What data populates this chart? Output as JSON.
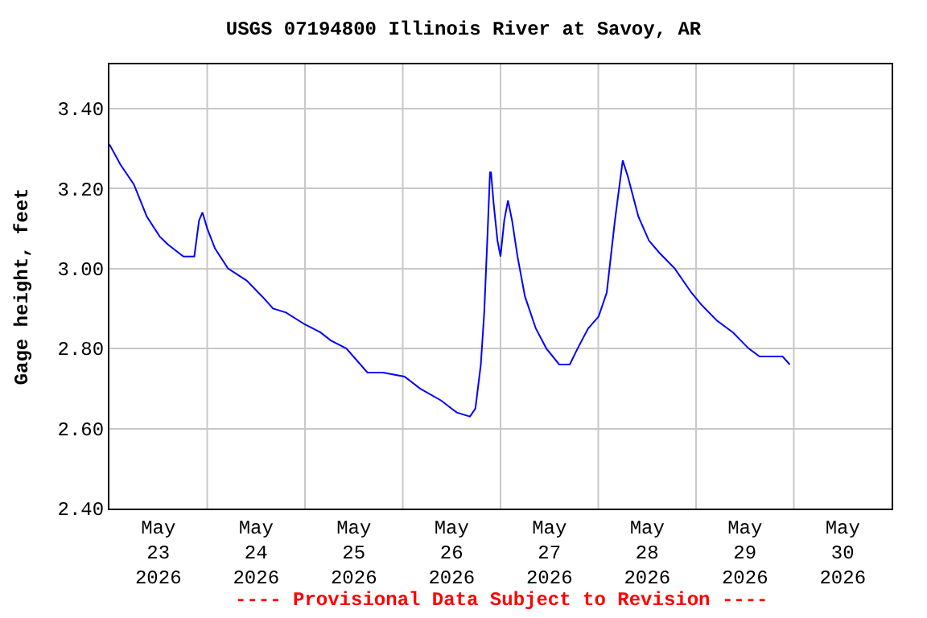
{
  "chart_data": {
    "type": "line",
    "title": "USGS 07194800 Illinois River at Savoy, AR",
    "ylabel": "Gage height, feet",
    "x": [
      "2026-05-23T00:00",
      "2026-05-23T02:40",
      "2026-05-23T06:00",
      "2026-05-23T09:10",
      "2026-05-23T12:20",
      "2026-05-23T14:20",
      "2026-05-23T18:10",
      "2026-05-23T20:50",
      "2026-05-23T22:00",
      "2026-05-23T22:50",
      "2026-05-24T00:00",
      "2026-05-24T01:55",
      "2026-05-24T05:05",
      "2026-05-24T09:40",
      "2026-05-24T13:30",
      "2026-05-24T16:10",
      "2026-05-24T19:20",
      "2026-05-25T00:00",
      "2026-05-25T03:50",
      "2026-05-25T06:20",
      "2026-05-25T10:10",
      "2026-05-25T15:20",
      "2026-05-25T19:10",
      "2026-05-26T00:25",
      "2026-05-26T04:15",
      "2026-05-26T09:25",
      "2026-05-26T13:15",
      "2026-05-26T16:30",
      "2026-05-26T17:50",
      "2026-05-26T19:10",
      "2026-05-26T20:00",
      "2026-05-26T20:50",
      "2026-05-26T21:25",
      "2026-05-26T21:40",
      "2026-05-26T22:20",
      "2026-05-26T23:15",
      "2026-05-27T00:00",
      "2026-05-27T00:55",
      "2026-05-27T01:50",
      "2026-05-27T02:50",
      "2026-05-27T04:10",
      "2026-05-27T06:00",
      "2026-05-27T08:40",
      "2026-05-27T11:15",
      "2026-05-27T14:25",
      "2026-05-27T17:00",
      "2026-05-27T18:55",
      "2026-05-27T21:30",
      "2026-05-28T00:05",
      "2026-05-28T02:05",
      "2026-05-28T04:05",
      "2026-05-28T06:00",
      "2026-05-28T07:15",
      "2026-05-28T09:50",
      "2026-05-28T12:25",
      "2026-05-28T14:55",
      "2026-05-28T18:45",
      "2026-05-28T22:50",
      "2026-05-29T01:15",
      "2026-05-29T05:05",
      "2026-05-29T09:05",
      "2026-05-29T12:55",
      "2026-05-29T15:35",
      "2026-05-29T19:25",
      "2026-05-29T21:15",
      "2026-05-29T23:00"
    ],
    "series": [
      {
        "color": "#0000ff",
        "values": [
          3.31,
          3.26,
          3.21,
          3.13,
          3.08,
          3.06,
          3.03,
          3.03,
          3.12,
          3.14,
          3.1,
          3.05,
          3.0,
          2.97,
          2.93,
          2.9,
          2.89,
          2.86,
          2.84,
          2.82,
          2.8,
          2.74,
          2.74,
          2.73,
          2.7,
          2.67,
          2.64,
          2.63,
          2.65,
          2.76,
          2.89,
          3.09,
          3.24,
          3.24,
          3.16,
          3.07,
          3.03,
          3.12,
          3.17,
          3.12,
          3.03,
          2.93,
          2.85,
          2.8,
          2.76,
          2.76,
          2.8,
          2.85,
          2.88,
          2.94,
          3.12,
          3.27,
          3.23,
          3.13,
          3.07,
          3.04,
          3.0,
          2.94,
          2.91,
          2.87,
          2.84,
          2.8,
          2.78,
          2.78,
          2.78,
          2.76
        ]
      }
    ],
    "xlim": [
      "2026-05-23T00:00",
      "2026-05-31T00:00"
    ],
    "xticks": [
      {
        "value": "2026-05-23T12:00",
        "label": "May\n23\n2026"
      },
      {
        "value": "2026-05-24T12:00",
        "label": "May\n24\n2026"
      },
      {
        "value": "2026-05-25T12:00",
        "label": "May\n25\n2026"
      },
      {
        "value": "2026-05-26T12:00",
        "label": "May\n26\n2026"
      },
      {
        "value": "2026-05-27T12:00",
        "label": "May\n27\n2026"
      },
      {
        "value": "2026-05-28T12:00",
        "label": "May\n28\n2026"
      },
      {
        "value": "2026-05-29T12:00",
        "label": "May\n29\n2026"
      },
      {
        "value": "2026-05-30T12:00",
        "label": "May\n30\n2026"
      },
      {
        "value": "2026-05-24T00:00",
        "label": null
      },
      {
        "value": "2026-05-25T00:00",
        "label": null
      },
      {
        "value": "2026-05-26T00:00",
        "label": null
      },
      {
        "value": "2026-05-27T00:00",
        "label": null
      },
      {
        "value": "2026-05-28T00:00",
        "label": null
      },
      {
        "value": "2026-05-29T00:00",
        "label": null
      },
      {
        "value": "2026-05-30T00:00",
        "label": null
      }
    ],
    "ylim": [
      2.4,
      3.51
    ],
    "yticks": [
      {
        "value": 2.4,
        "label": "2.40"
      },
      {
        "value": 2.6,
        "label": "2.60"
      },
      {
        "value": 2.8,
        "label": "2.80"
      },
      {
        "value": 3.0,
        "label": "3.00"
      },
      {
        "value": 3.2,
        "label": "3.20"
      },
      {
        "value": 3.4,
        "label": "3.40"
      }
    ],
    "grid": true,
    "line_style": "solid",
    "annotations": [
      "---- Provisional Data Subject to Revision ----"
    ]
  }
}
